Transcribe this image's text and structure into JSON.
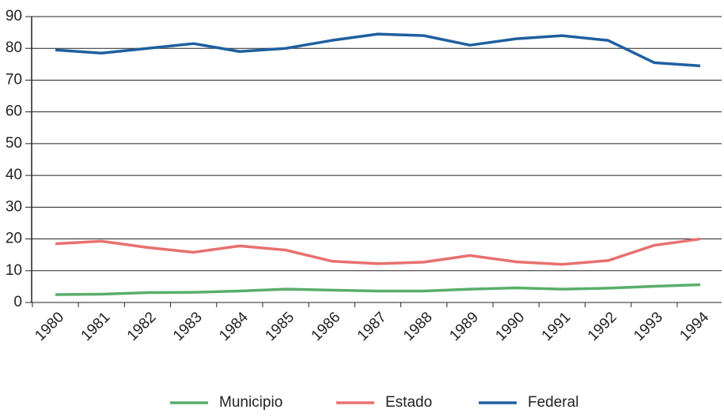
{
  "chart_data": {
    "type": "line",
    "categories": [
      "1980",
      "1981",
      "1982",
      "1983",
      "1984",
      "1985",
      "1986",
      "1987",
      "1988",
      "1989",
      "1990",
      "1991",
      "1992",
      "1993",
      "1994"
    ],
    "series": [
      {
        "name": "Municipio",
        "color": "#5aae6b",
        "values": [
          2.5,
          2.6,
          3.1,
          3.2,
          3.6,
          4.2,
          3.9,
          3.6,
          3.6,
          4.2,
          4.6,
          4.2,
          4.5,
          5.1,
          5.6
        ]
      },
      {
        "name": "Estado",
        "color": "#e8706f",
        "values": [
          18.5,
          19.3,
          17.3,
          15.8,
          17.8,
          16.5,
          13,
          12.2,
          12.7,
          14.8,
          12.8,
          12,
          13.2,
          18,
          20
        ]
      },
      {
        "name": "Federal",
        "color": "#1f5fa0",
        "values": [
          79.5,
          78.5,
          80,
          81.5,
          79,
          80,
          82.5,
          84.5,
          84,
          81,
          83,
          84,
          82.5,
          75.5,
          74.5
        ]
      }
    ],
    "ylim": [
      0,
      90
    ],
    "yticks": [
      0,
      10,
      20,
      30,
      40,
      50,
      60,
      70,
      80,
      90
    ],
    "grid": true,
    "legend": "bottom"
  }
}
